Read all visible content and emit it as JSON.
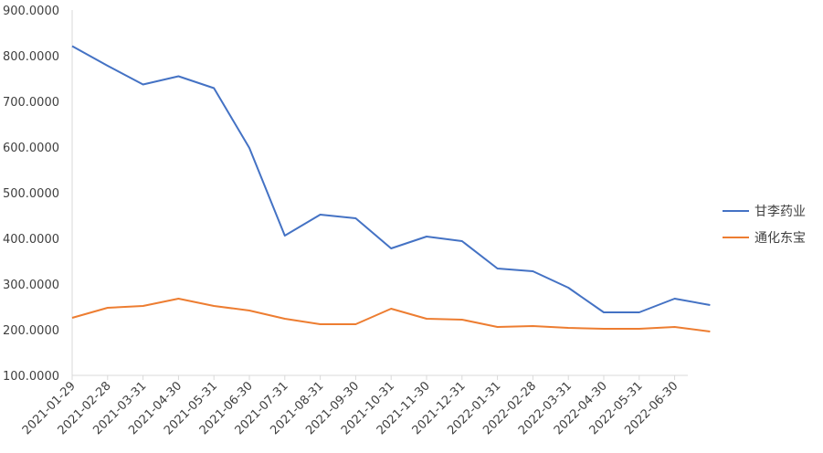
{
  "chart_data": {
    "type": "line",
    "title": "",
    "xlabel": "",
    "ylabel": "",
    "ylim": [
      100,
      900
    ],
    "y_ticks": [
      "100.0000",
      "200.0000",
      "300.0000",
      "400.0000",
      "500.0000",
      "600.0000",
      "700.0000",
      "800.0000",
      "900.0000"
    ],
    "x_tick_labels": [
      "2021-01-29",
      "2021-02-28",
      "2021-03-31",
      "2021-04-30",
      "2021-05-31",
      "2021-06-30",
      "2021-07-31",
      "2021-08-31",
      "2021-09-30",
      "2021-10-31",
      "2021-11-30",
      "2021-12-31",
      "2022-01-31",
      "2022-02-28",
      "2022-03-31",
      "2022-04-30",
      "2022-05-31",
      "2022-06-30"
    ],
    "x_points": [
      "2021-01-29",
      "2021-02-28",
      "2021-03-31",
      "2021-04-30",
      "2021-05-31",
      "2021-06-30",
      "2021-07-31",
      "2021-08-31",
      "2021-09-30",
      "2021-10-31",
      "2021-11-30",
      "2021-12-31",
      "2022-01-31",
      "2022-02-28",
      "2022-03-31",
      "2022-04-30",
      "2022-05-31",
      "2022-06-30",
      "2022-07-15"
    ],
    "grid": false,
    "legend_position": "right",
    "series": [
      {
        "name": "甘李药业",
        "color": "#4472C4",
        "values": [
          821,
          778,
          737,
          755,
          729,
          598,
          406,
          452,
          444,
          378,
          404,
          394,
          334,
          328,
          292,
          238,
          238,
          268,
          254
        ]
      },
      {
        "name": "通化东宝",
        "color": "#ED7D31",
        "values": [
          226,
          248,
          252,
          268,
          252,
          242,
          224,
          212,
          212,
          246,
          224,
          222,
          206,
          208,
          204,
          202,
          202,
          206,
          196
        ]
      }
    ]
  }
}
